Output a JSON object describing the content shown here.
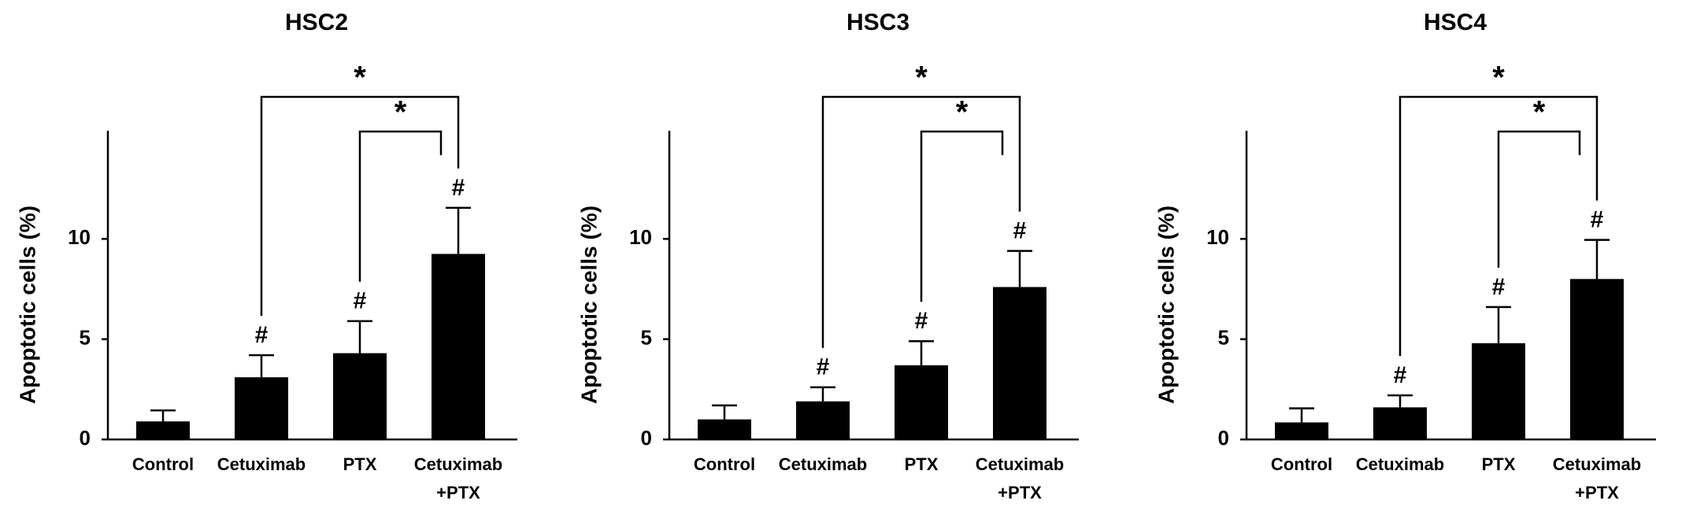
{
  "chart_data": [
    {
      "type": "bar",
      "title": "HSC2",
      "ylabel": "Apoptotic cells (%)",
      "categories": [
        "Control",
        "Cetuximab",
        "PTX",
        "Cetuximab\n+PTX"
      ],
      "values": [
        0.9,
        3.1,
        4.3,
        9.25
      ],
      "errors": [
        0.55,
        1.1,
        1.6,
        2.3
      ],
      "markers": [
        null,
        "#",
        "#",
        "#"
      ],
      "brackets": [
        {
          "from": 1,
          "to": 3,
          "label": "*"
        },
        {
          "from": 2,
          "to": 3,
          "label": "*"
        }
      ],
      "color": "#000000",
      "ylim": [
        0,
        15
      ],
      "yticks": [
        0,
        5,
        10
      ]
    },
    {
      "type": "bar",
      "title": "HSC3",
      "ylabel": "Apoptotic cells (%)",
      "categories": [
        "Control",
        "Cetuximab",
        "PTX",
        "Cetuximab\n+PTX"
      ],
      "values": [
        1.0,
        1.9,
        3.7,
        7.6
      ],
      "errors": [
        0.7,
        0.7,
        1.2,
        1.8
      ],
      "markers": [
        null,
        "#",
        "#",
        "#"
      ],
      "brackets": [
        {
          "from": 1,
          "to": 3,
          "label": "*"
        },
        {
          "from": 2,
          "to": 3,
          "label": "*"
        }
      ],
      "color": "#000000",
      "ylim": [
        0,
        15
      ],
      "yticks": [
        0,
        5,
        10
      ]
    },
    {
      "type": "bar",
      "title": "HSC4",
      "ylabel": "Apoptotic cells (%)",
      "categories": [
        "Control",
        "Cetuximab",
        "PTX",
        "Cetuximab\n+PTX"
      ],
      "values": [
        0.85,
        1.6,
        4.8,
        8.0
      ],
      "errors": [
        0.7,
        0.6,
        1.8,
        1.95
      ],
      "markers": [
        null,
        "#",
        "#",
        "#"
      ],
      "brackets": [
        {
          "from": 1,
          "to": 3,
          "label": "*"
        },
        {
          "from": 2,
          "to": 3,
          "label": "*"
        }
      ],
      "color": "#000000",
      "ylim": [
        0,
        15
      ],
      "yticks": [
        0,
        5,
        10
      ]
    }
  ]
}
